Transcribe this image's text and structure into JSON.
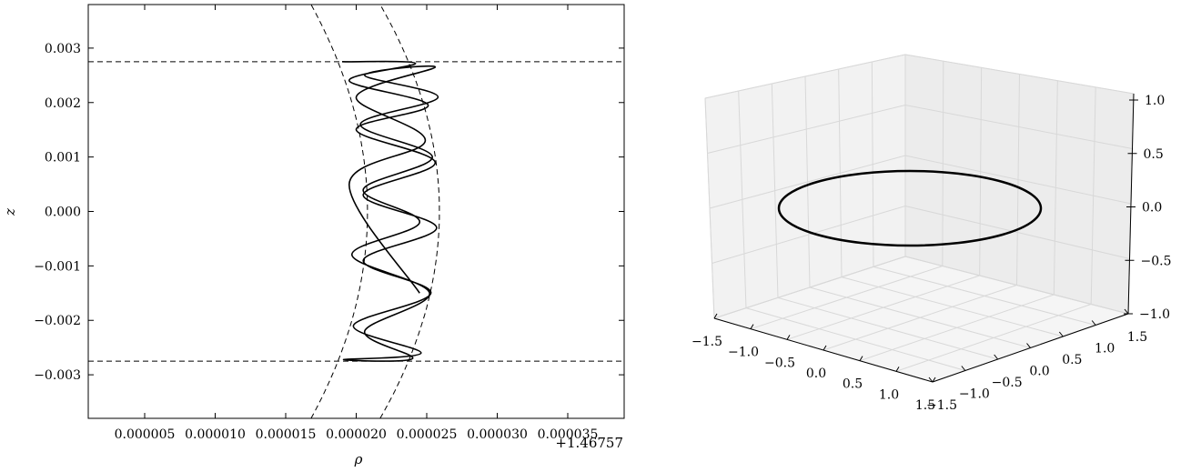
{
  "chart_data": [
    {
      "type": "line",
      "xlabel": "ρ",
      "ylabel": "z",
      "x_offset_label": "+1.46757",
      "xlim": [
        1e-06,
        3.9e-05
      ],
      "ylim": [
        -0.0038,
        0.0038
      ],
      "x_ticks": [
        5e-06,
        1e-05,
        1.5e-05,
        2e-05,
        2.5e-05,
        3e-05,
        3.5e-05
      ],
      "x_tick_labels": [
        "0.000005",
        "0.000010",
        "0.000015",
        "0.000020",
        "0.000025",
        "0.000030",
        "0.000035"
      ],
      "y_ticks": [
        0.003,
        0.002,
        0.001,
        0.0,
        -0.001,
        -0.002,
        -0.003
      ],
      "y_tick_labels": [
        "0.003",
        "0.002",
        "0.001",
        "0.000",
        "−0.001",
        "−0.002",
        "−0.003"
      ],
      "bounds": {
        "z_max": 0.00275,
        "z_min": -0.00275,
        "inner_curve": {
          "rho_min": 1.68e-05,
          "rho_max": 2.08e-05
        },
        "outer_curve": {
          "rho_min": 2.17e-05,
          "rho_max": 2.59e-05
        }
      },
      "series": [
        {
          "style": "solid",
          "description_points": "helical trajectory oscillating between the inner and outer dashed curves",
          "x": [
            1.9e-05,
            2.42e-05,
            1.95e-05,
            2.51e-05,
            2e-05,
            2.56e-05,
            2.05e-05,
            2.57e-05,
            2.05e-05,
            2.53e-05,
            1.98e-05,
            2.46e-05,
            1.91e-05,
            2.4e-05,
            2.06e-05,
            2.52e-05,
            1.97e-05,
            2.45e-05,
            2.05e-05,
            2.54e-05,
            2.03e-05,
            2.58e-05,
            2.06e-05,
            2.56e-05,
            2e-05,
            2.49e-05,
            1.95e-05,
            2.45e-05
          ],
          "y": [
            0.00275,
            0.00272,
            0.0024,
            0.00195,
            0.0015,
            0.0009,
            0.0003,
            -0.0003,
            -0.0009,
            -0.0015,
            -0.0021,
            -0.0026,
            -0.00272,
            -0.0027,
            -0.0022,
            -0.0015,
            -0.0008,
            -0.0002,
            0.0004,
            0.001,
            0.0016,
            0.0021,
            0.0025,
            0.00265,
            0.0021,
            0.0013,
            0.0005,
            -0.0015
          ]
        }
      ]
    },
    {
      "type": "line",
      "projection": "3d",
      "x_tick_labels": [
        "−1.5",
        "−1.0",
        "−0.5",
        "0.0",
        "0.5",
        "1.0",
        "1.5"
      ],
      "y_tick_labels": [
        "−1.5",
        "−1.0",
        "−0.5",
        "0.0",
        "0.5",
        "1.0",
        "1.5"
      ],
      "z_tick_labels": [
        "1.0",
        "0.5",
        "0.0",
        "−0.5",
        "−1.0"
      ],
      "xlim": [
        -1.5,
        1.5
      ],
      "ylim": [
        -1.5,
        1.5
      ],
      "zlim": [
        -1.0,
        1.0
      ],
      "series": [
        {
          "style": "solid",
          "shape": "circle",
          "radius": 1.46757,
          "z": 0.0
        }
      ]
    }
  ]
}
